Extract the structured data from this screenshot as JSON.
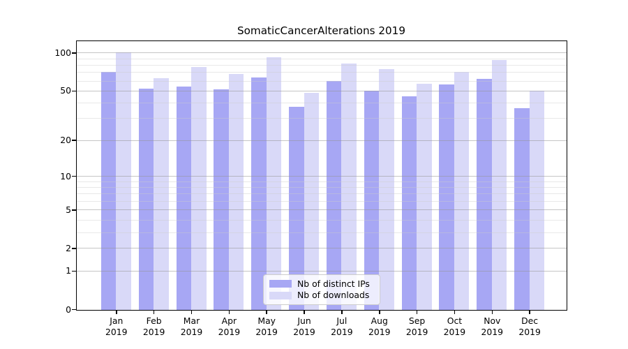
{
  "chart_data": {
    "type": "bar",
    "title": "SomaticCancerAlterations 2019",
    "x_axis": {
      "categories": [
        "Jan",
        "Feb",
        "Mar",
        "Apr",
        "May",
        "Jun",
        "Jul",
        "Aug",
        "Sep",
        "Oct",
        "Nov",
        "Dec"
      ],
      "year_suffix": "2019"
    },
    "y_axis": {
      "scale": "log1p",
      "ticks": [
        100,
        50,
        20,
        10,
        5,
        2,
        1,
        0
      ],
      "minor_gridlines": [
        3,
        4,
        6,
        7,
        8,
        9,
        30,
        40,
        60,
        70,
        80,
        90
      ],
      "range": [
        0,
        123
      ]
    },
    "series": [
      {
        "name": "Nb of distinct IPs",
        "color": "#a7a7f4",
        "values": [
          70,
          52,
          54,
          51,
          64,
          37,
          60,
          50,
          45,
          56,
          62,
          36
        ]
      },
      {
        "name": "Nb of downloads",
        "color": "#d9d9f8",
        "values": [
          100,
          63,
          77,
          68,
          92,
          48,
          82,
          74,
          57,
          70,
          87,
          50
        ]
      }
    ],
    "legend": {
      "position": "lower center"
    },
    "grid": true
  }
}
